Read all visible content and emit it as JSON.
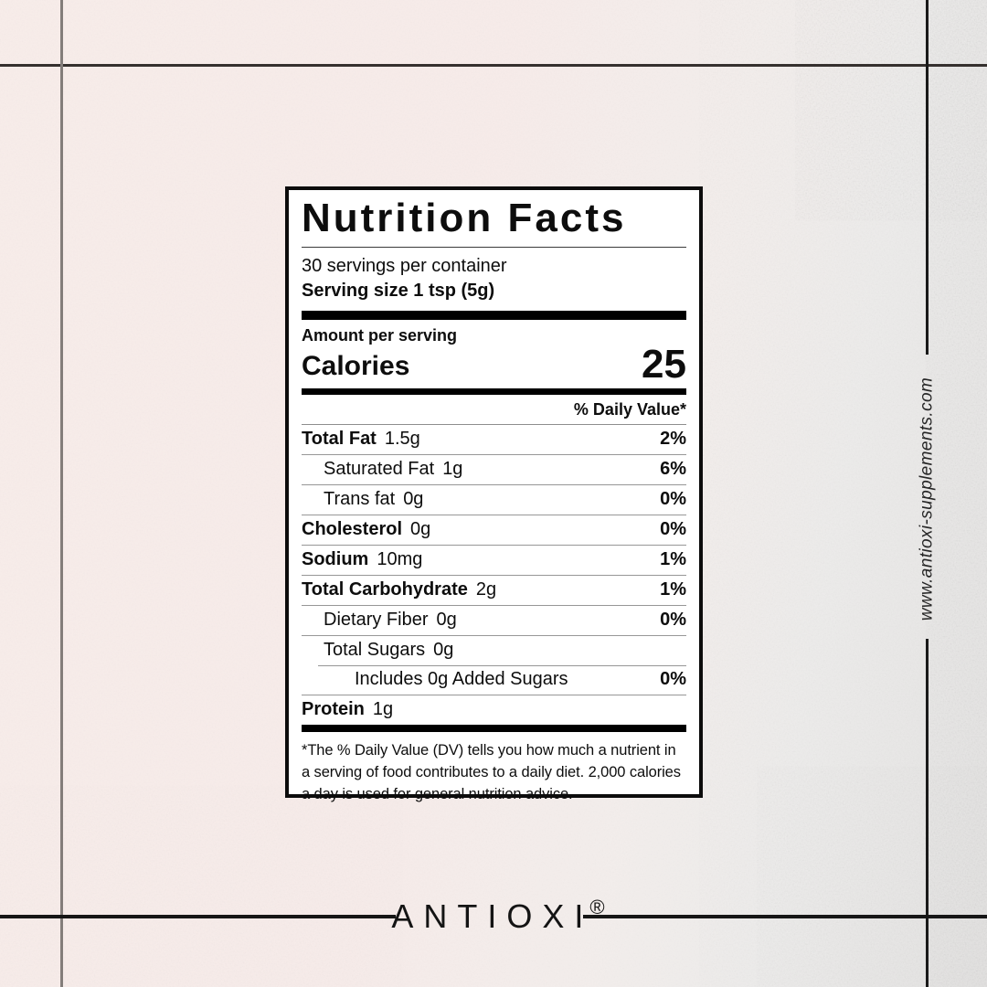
{
  "colors": {
    "background_pink": "#f6ece9",
    "background_gray": "#e3e2e1",
    "frame_black": "#161616",
    "frame_gray": "#837d7a",
    "label_background": "#ffffff",
    "text_black": "#0d0d0d",
    "row_rule_gray": "#979797"
  },
  "label": {
    "title": "Nutrition Facts",
    "servings_per_container": "30 servings per container",
    "serving_size": "Serving size 1 tsp (5g)",
    "amount_per_serving": "Amount per serving",
    "calories_label": "Calories",
    "calories_value": "25",
    "daily_value_header": "% Daily Value*",
    "rows": [
      {
        "name": "Total Fat",
        "amount": "1.5g",
        "dv": "2%",
        "bold": true,
        "indent": 0
      },
      {
        "name": "Saturated Fat",
        "amount": "1g",
        "dv": "6%",
        "bold": false,
        "indent": 1
      },
      {
        "name": "Trans fat",
        "amount": "0g",
        "dv": "0%",
        "bold": false,
        "indent": 1
      },
      {
        "name": "Cholesterol",
        "amount": "0g",
        "dv": "0%",
        "bold": true,
        "indent": 0
      },
      {
        "name": "Sodium",
        "amount": "10mg",
        "dv": "1%",
        "bold": true,
        "indent": 0
      },
      {
        "name": "Total Carbohydrate",
        "amount": "2g",
        "dv": "1%",
        "bold": true,
        "indent": 0
      },
      {
        "name": "Dietary Fiber",
        "amount": "0g",
        "dv": "0%",
        "bold": false,
        "indent": 1
      },
      {
        "name": "Total Sugars",
        "amount": "0g",
        "dv": "",
        "bold": false,
        "indent": 1
      },
      {
        "name": "Includes 0g Added Sugars",
        "amount": "",
        "dv": "0%",
        "bold": false,
        "indent": 2,
        "rule_indent": true
      },
      {
        "name": "Protein",
        "amount": "1g",
        "dv": "",
        "bold": true,
        "indent": 0
      }
    ],
    "footnote": "*The % Daily Value (DV) tells you how much a nutrient in a serving of food contributes to a daily diet. 2,000 calories a day is used for general nutrition advice."
  },
  "brand": {
    "name": "ANTIOXI",
    "registered_mark": "®"
  },
  "site": {
    "url": "www.antioxi-supplements.com"
  }
}
